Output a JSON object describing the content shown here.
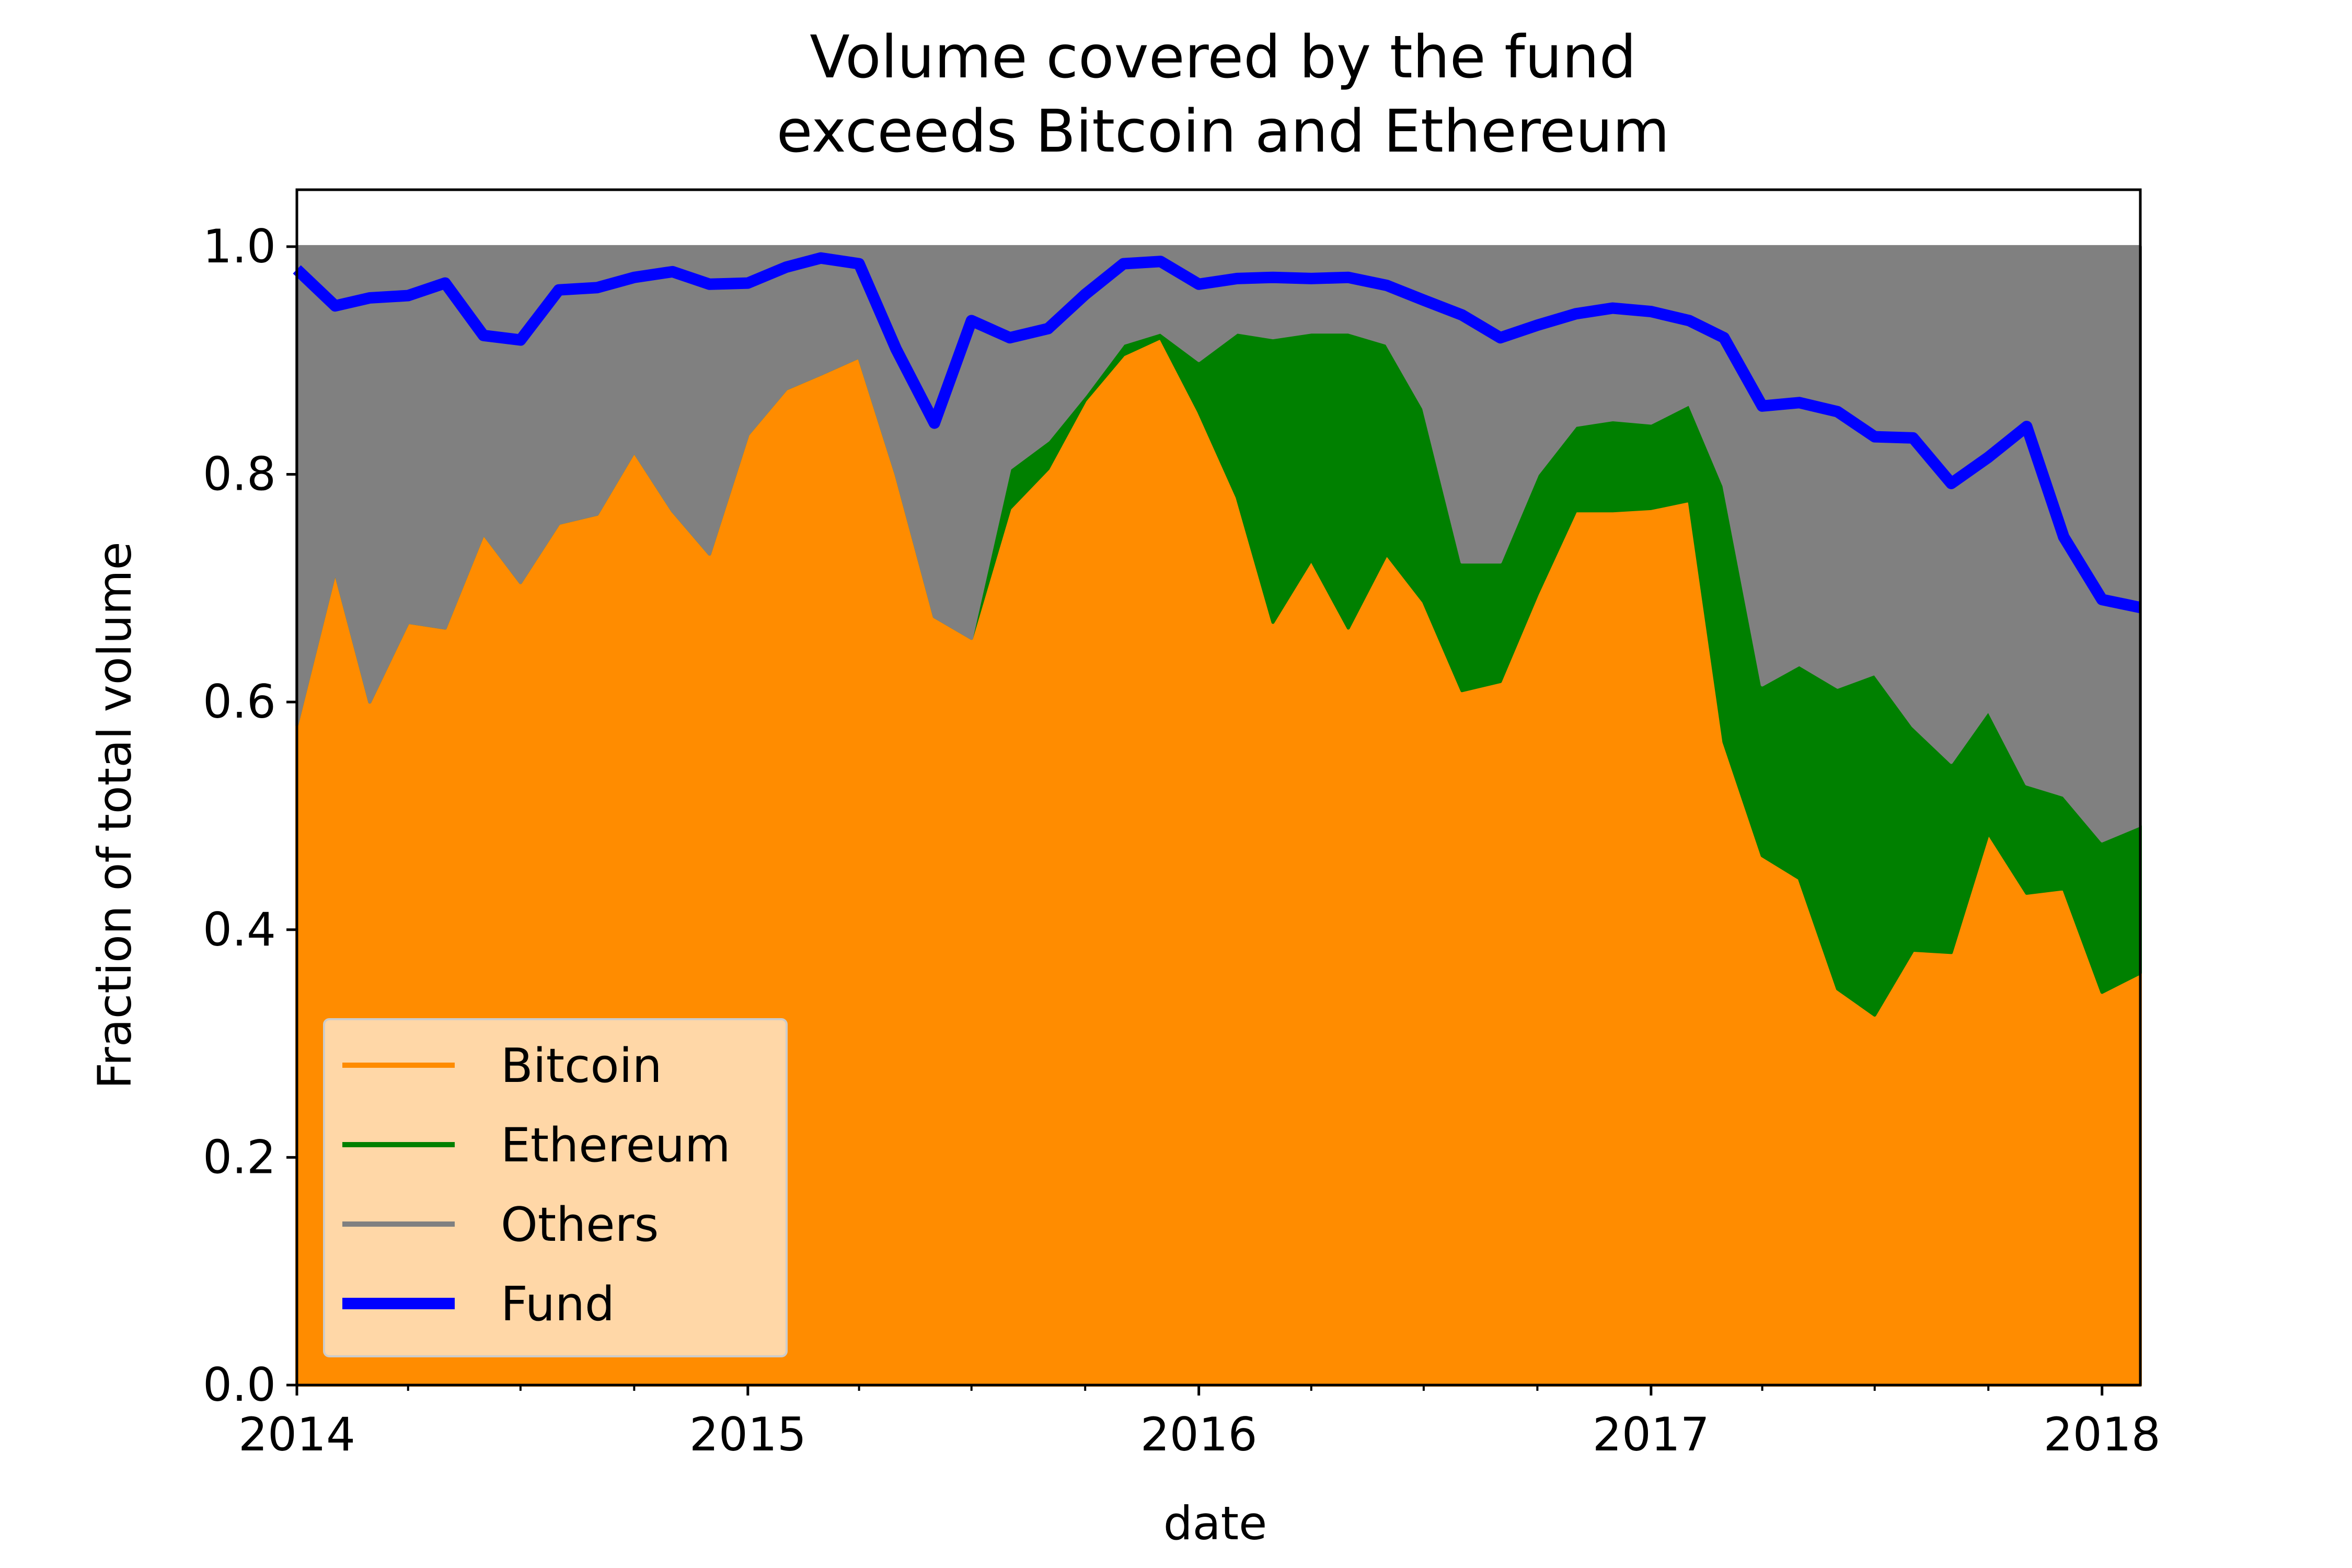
{
  "chart_data": {
    "type": "area",
    "title_line1": "Volume covered by the fund",
    "title_line2": "exceeds Bitcoin and Ethereum",
    "xlabel": "date",
    "ylabel": "Fraction of total volume",
    "xlim": [
      "2014-01-01",
      "2018-02-01"
    ],
    "ylim": [
      0,
      1.05
    ],
    "x_ticks": [
      "2014",
      "2015",
      "2016",
      "2017",
      "2018"
    ],
    "y_ticks": [
      "0.0",
      "0.2",
      "0.4",
      "0.6",
      "0.8",
      "1.0"
    ],
    "grid": false,
    "legend_position": "lower-left",
    "x": [
      "2014-01",
      "2014-02",
      "2014-03",
      "2014-04",
      "2014-05",
      "2014-06",
      "2014-07",
      "2014-08",
      "2014-09",
      "2014-10",
      "2014-11",
      "2014-12",
      "2015-01",
      "2015-02",
      "2015-03",
      "2015-04",
      "2015-05",
      "2015-06",
      "2015-07",
      "2015-08",
      "2015-09",
      "2015-10",
      "2015-11",
      "2015-12",
      "2016-01",
      "2016-02",
      "2016-03",
      "2016-04",
      "2016-05",
      "2016-06",
      "2016-07",
      "2016-08",
      "2016-09",
      "2016-10",
      "2016-11",
      "2016-12",
      "2017-01",
      "2017-02",
      "2017-03",
      "2017-04",
      "2017-05",
      "2017-06",
      "2017-07",
      "2017-08",
      "2017-09",
      "2017-10",
      "2017-11",
      "2017-12",
      "2018-01",
      "2018-02"
    ],
    "series": [
      {
        "name": "Bitcoin",
        "color": "#ff8c00",
        "style": "stacked-area",
        "values": [
          0.58,
          0.715,
          0.6,
          0.67,
          0.665,
          0.748,
          0.705,
          0.757,
          0.765,
          0.82,
          0.768,
          0.73,
          0.835,
          0.875,
          0.888,
          0.903,
          0.8,
          0.675,
          0.656,
          0.77,
          0.805,
          0.865,
          0.905,
          0.92,
          0.855,
          0.78,
          0.67,
          0.725,
          0.665,
          0.73,
          0.688,
          0.61,
          0.618,
          0.695,
          0.768,
          0.768,
          0.77,
          0.777,
          0.565,
          0.465,
          0.445,
          0.348,
          0.325,
          0.382,
          0.38,
          0.485,
          0.432,
          0.436,
          0.345,
          0.362
        ]
      },
      {
        "name": "Ethereum",
        "color": "#008000",
        "style": "stacked-area",
        "values": [
          0,
          0,
          0,
          0,
          0,
          0,
          0,
          0,
          0,
          0,
          0,
          0,
          0,
          0,
          0,
          0,
          0,
          0,
          0,
          0.035,
          0.025,
          0.005,
          0.01,
          0.005,
          0.045,
          0.145,
          0.25,
          0.2,
          0.26,
          0.185,
          0.17,
          0.113,
          0.105,
          0.105,
          0.075,
          0.08,
          0.075,
          0.085,
          0.225,
          0.15,
          0.188,
          0.265,
          0.3,
          0.197,
          0.167,
          0.108,
          0.096,
          0.082,
          0.133,
          0.13
        ]
      },
      {
        "name": "Others",
        "color": "#808080",
        "style": "stacked-area",
        "values": [
          0.42,
          0.285,
          0.4,
          0.33,
          0.335,
          0.252,
          0.295,
          0.243,
          0.235,
          0.18,
          0.232,
          0.27,
          0.165,
          0.125,
          0.112,
          0.097,
          0.2,
          0.325,
          0.344,
          0.195,
          0.17,
          0.13,
          0.085,
          0.075,
          0.1,
          0.075,
          0.08,
          0.075,
          0.075,
          0.085,
          0.142,
          0.277,
          0.277,
          0.2,
          0.157,
          0.152,
          0.155,
          0.138,
          0.21,
          0.385,
          0.367,
          0.387,
          0.375,
          0.421,
          0.453,
          0.407,
          0.472,
          0.482,
          0.522,
          0.508
        ]
      },
      {
        "name": "Fund",
        "color": "#0000ff",
        "style": "line",
        "values": [
          0.98,
          0.948,
          0.955,
          0.957,
          0.968,
          0.922,
          0.918,
          0.962,
          0.964,
          0.973,
          0.978,
          0.967,
          0.968,
          0.982,
          0.99,
          0.985,
          0.91,
          0.845,
          0.935,
          0.92,
          0.928,
          0.958,
          0.985,
          0.987,
          0.967,
          0.972,
          0.973,
          0.972,
          0.973,
          0.966,
          0.953,
          0.94,
          0.92,
          0.931,
          0.941,
          0.946,
          0.943,
          0.935,
          0.92,
          0.86,
          0.863,
          0.855,
          0.833,
          0.832,
          0.792,
          0.815,
          0.842,
          0.745,
          0.69,
          0.683
        ]
      }
    ]
  }
}
